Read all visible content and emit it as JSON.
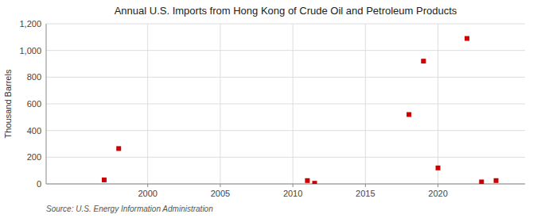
{
  "chart_data": {
    "type": "scatter",
    "title": "Annual U.S. Imports from Hong Kong of Crude Oil and Petroleum Products",
    "ylabel": "Thousand Barrels",
    "source": "Source: U.S. Energy Information Administration",
    "x": [
      1997,
      1998,
      2011,
      2011.5,
      2018,
      2019,
      2020,
      2022,
      2023,
      2024
    ],
    "values": [
      30,
      265,
      25,
      5,
      520,
      920,
      120,
      1090,
      15,
      25
    ],
    "color": "#cc0000",
    "marker": "square",
    "xlim": [
      1993,
      2026
    ],
    "ylim": [
      0,
      1200
    ],
    "xticks": [
      2000,
      2005,
      2010,
      2015,
      2020
    ],
    "yticks": [
      0,
      200,
      400,
      600,
      800,
      {
        "value": 1000,
        "label": "1,000"
      },
      {
        "value": 1200,
        "label": "1,200"
      }
    ],
    "grid": true
  }
}
